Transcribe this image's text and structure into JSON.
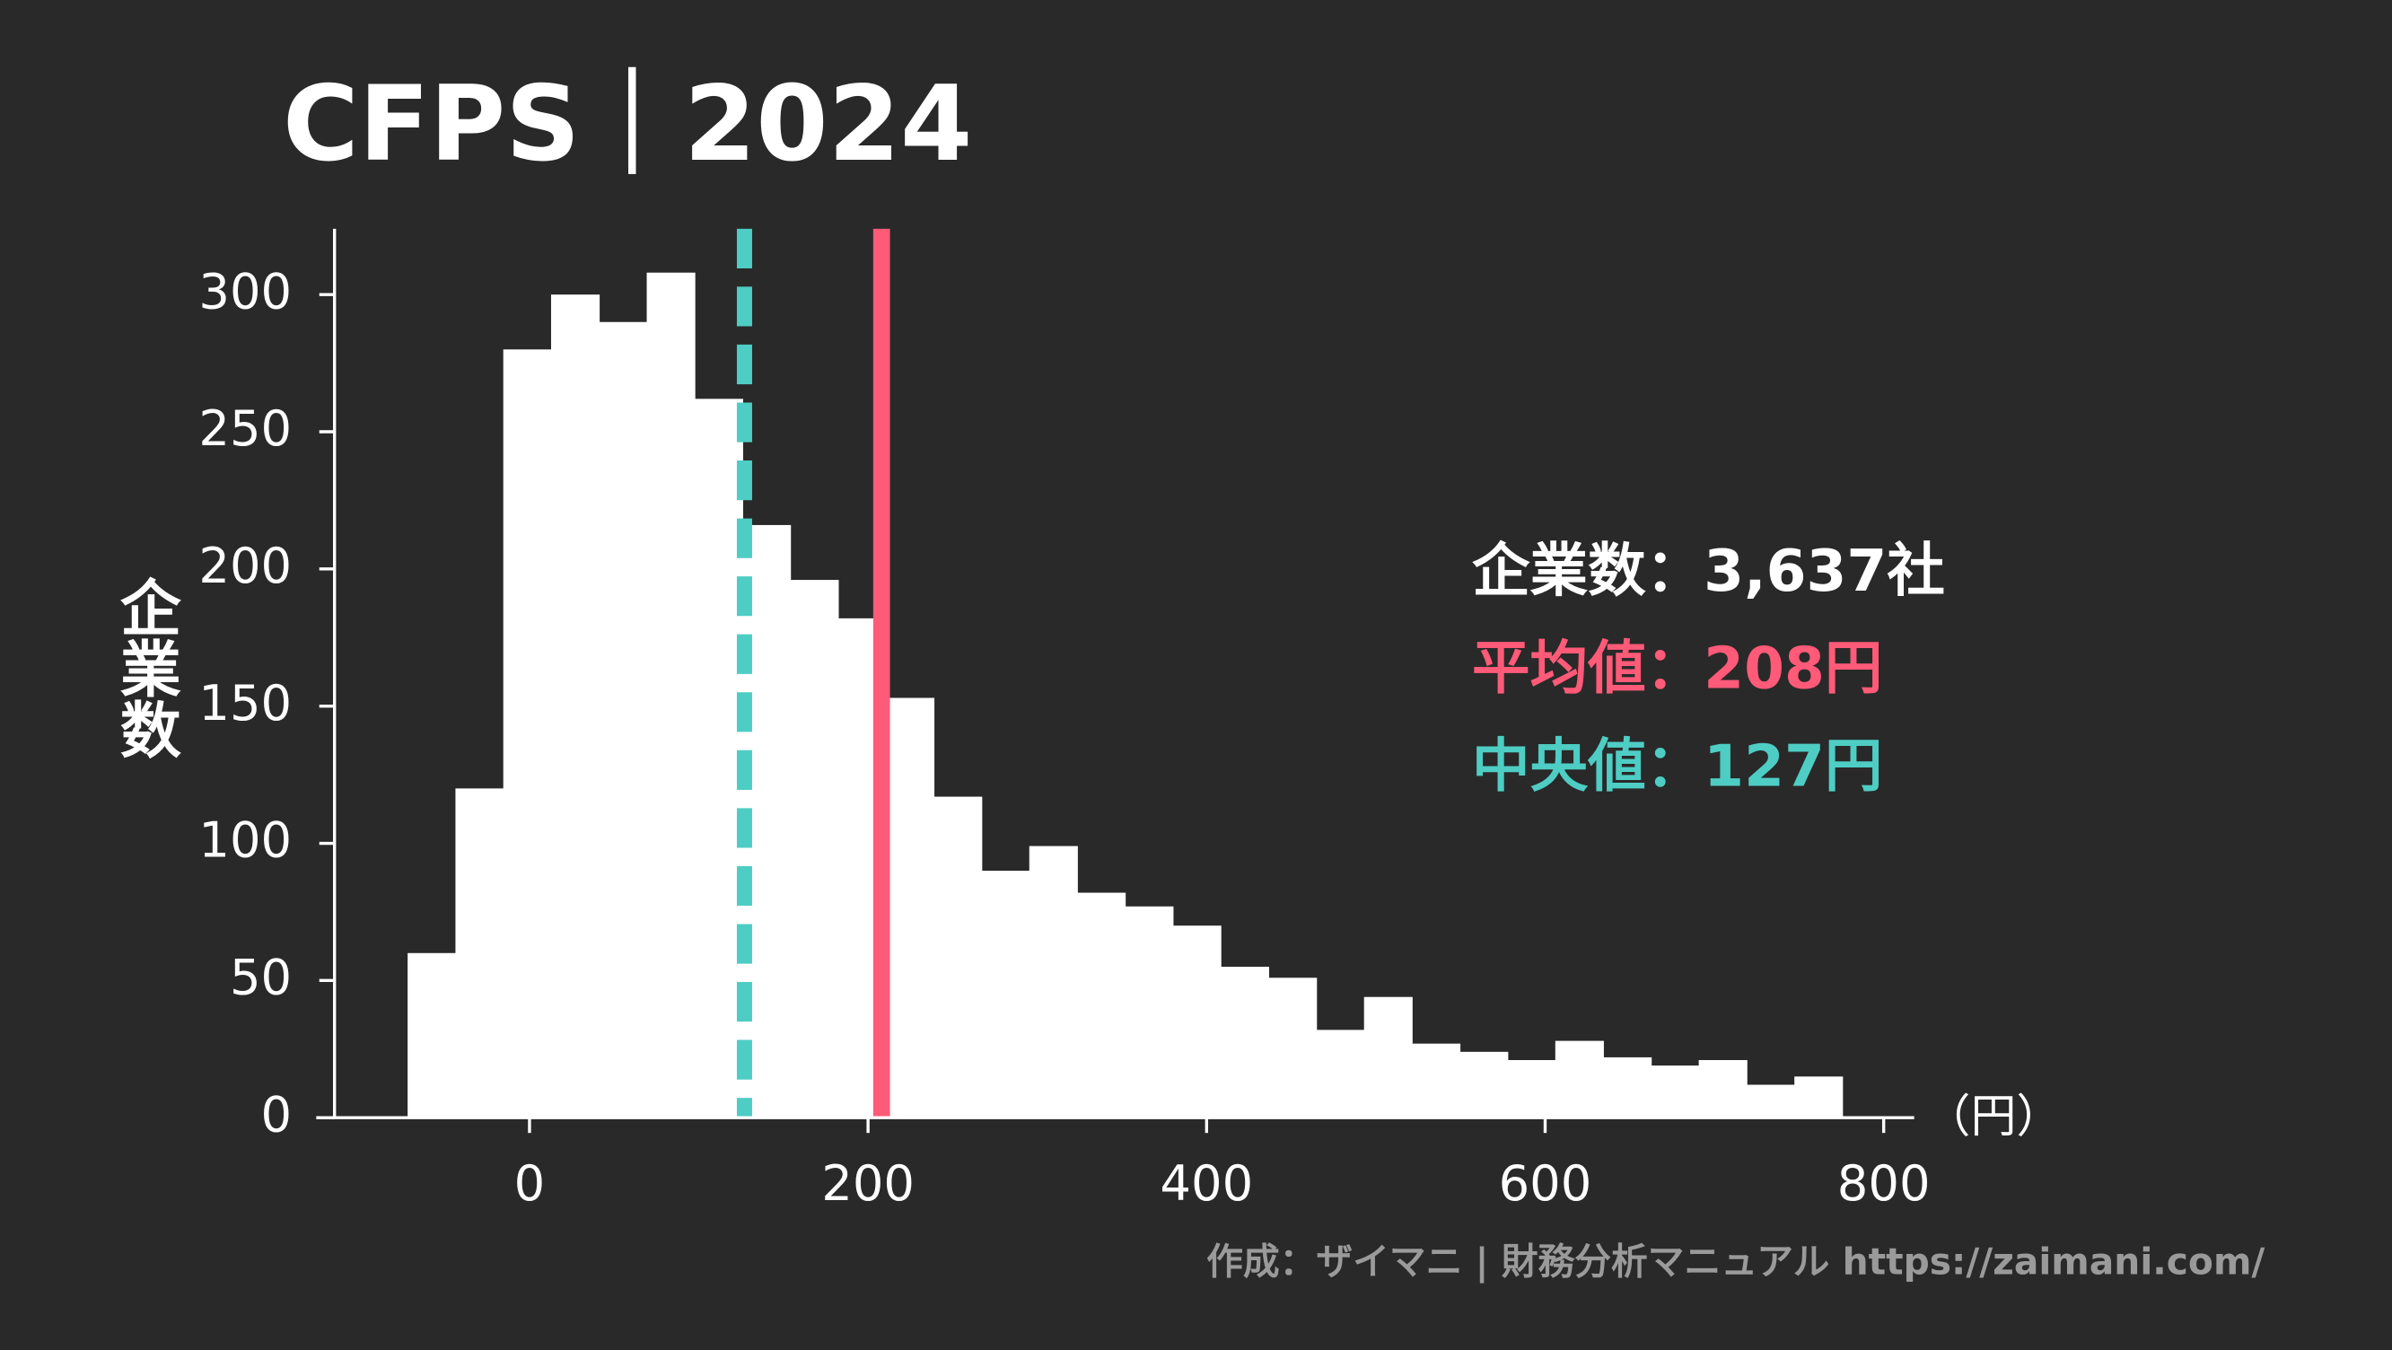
{
  "chart_data": {
    "type": "histogram",
    "title": "CFPS｜2024",
    "y_label": "企業数",
    "x_label": "（円）",
    "bins": [
      -72,
      -43.75,
      -15.5,
      12.75,
      41,
      69.25,
      97.5,
      125.75,
      154,
      182.25,
      210.5,
      238.75,
      267,
      295.25,
      323.5,
      351.75,
      380,
      408.25,
      436.5,
      464.75,
      493,
      521.25,
      549.5,
      577.75,
      606,
      634.25,
      662.5,
      690.75,
      719,
      747.25,
      775.5
    ],
    "values": [
      60,
      120,
      280,
      300,
      290,
      308,
      262,
      216,
      196,
      182,
      153,
      117,
      90,
      99,
      82,
      77,
      70,
      55,
      51,
      32,
      44,
      27,
      24,
      21,
      28,
      22,
      19,
      21,
      12,
      15
    ],
    "color": "#ffffff",
    "xlim": [
      -126,
      818
    ],
    "xticks": [
      0,
      200,
      400,
      600,
      800
    ],
    "ylim": [
      0,
      324
    ],
    "yticks": [
      0,
      50,
      100,
      150,
      200,
      250,
      300
    ],
    "annotation": "企業数：3,637社",
    "reference_lines": [
      {
        "value": 208,
        "label": "平均値：208円",
        "color": "#ff5a78",
        "style": "solid"
      },
      {
        "value": 127,
        "label": "中央値：127円",
        "color": "#4ecdc4",
        "style": "dashed"
      }
    ],
    "source": "作成：ザイマニ | 財務分析マニュアル https://zaimani.com/"
  }
}
